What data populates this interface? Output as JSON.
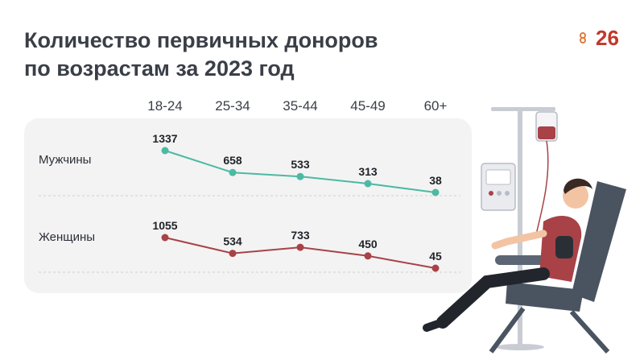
{
  "title": {
    "line1": "Количество первичных доноров",
    "line2": "по возрастам за 2023 год"
  },
  "logo": {
    "text": "26"
  },
  "colors": {
    "men": "#4cb9a3",
    "women": "#a84247",
    "text": "#3a3f47"
  },
  "chart_data": {
    "type": "line",
    "categories": [
      "18-24",
      "25-34",
      "35-44",
      "45-49",
      "60+"
    ],
    "series": [
      {
        "name": "Мужчины",
        "values": [
          1337,
          658,
          533,
          313,
          38
        ]
      },
      {
        "name": "Женщины",
        "values": [
          1055,
          534,
          733,
          450,
          45
        ]
      }
    ],
    "grid": false,
    "legend": "left"
  }
}
